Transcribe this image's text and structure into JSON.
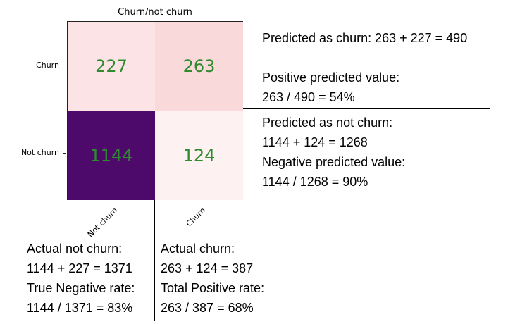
{
  "matrix": {
    "title": "Churn/not churn",
    "row_labels": [
      "Churn",
      "Not churn"
    ],
    "col_labels": [
      "Not churn",
      "Churn"
    ],
    "cells": {
      "churn_not_churn": "227",
      "churn_churn": "263",
      "not_churn_not_churn": "1144",
      "not_churn_churn": "124"
    },
    "colors": {
      "cell_tl": "#fce4e6",
      "cell_tr": "#fad9db",
      "cell_bl": "#4d0a6b",
      "cell_br": "#fdf2f1",
      "value_text": "#2e8b2e"
    }
  },
  "right_notes": {
    "predicted_churn": "Predicted as churn: 263 + 227 = 490",
    "ppv_label": "Positive predicted value:",
    "ppv_value": "263 / 490 = 54%",
    "predicted_not_churn": "Predicted as not churn:",
    "predicted_not_churn_sum": "1144 + 124 = 1268",
    "npv_label": "Negative predicted value:",
    "npv_value": "1144 / 1268 = 90%"
  },
  "bottom_left_notes": {
    "actual_not_churn": "Actual not churn:",
    "actual_not_churn_sum": "1144 + 227 = 1371",
    "tnr_label": "True Negative rate:",
    "tnr_value": "1144 / 1371 = 83%"
  },
  "bottom_right_notes": {
    "actual_churn": "Actual churn:",
    "actual_churn_sum": "263 + 124 = 387",
    "tpr_label": "Total Positive rate:",
    "tpr_value": "263 / 387 = 68%"
  }
}
